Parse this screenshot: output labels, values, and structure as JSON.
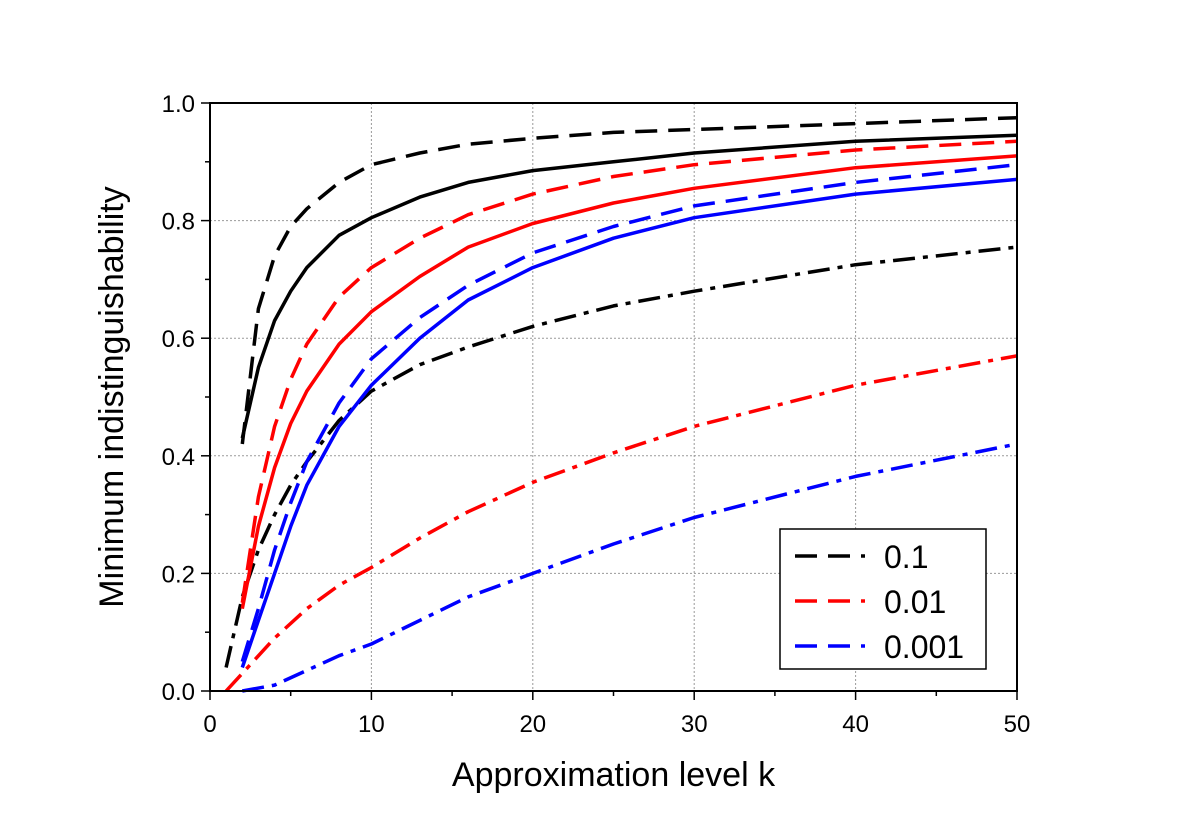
{
  "chart_data": {
    "type": "line",
    "title": "",
    "xlabel": "Approximation level k",
    "ylabel": "Minimum indistinguishability",
    "xlim": [
      0,
      50
    ],
    "ylim": [
      0.0,
      1.0
    ],
    "x_ticks": [
      "0",
      "10",
      "20",
      "30",
      "40",
      "50"
    ],
    "y_ticks": [
      "0.0",
      "0.2",
      "0.4",
      "0.6",
      "0.8",
      "1.0"
    ],
    "grid": true,
    "legend_position": "bottom-right",
    "legend": [
      {
        "label": "0.1",
        "color": "#000000",
        "style": "dashed"
      },
      {
        "label": "0.01",
        "color": "#ff0000",
        "style": "dashed"
      },
      {
        "label": "0.001",
        "color": "#0000ff",
        "style": "dashed"
      }
    ],
    "series": [
      {
        "name": "0.1 dashed",
        "color": "#000000",
        "style": "dashed",
        "x": [
          2,
          3,
          4,
          5,
          6,
          8,
          10,
          13,
          16,
          20,
          25,
          30,
          40,
          50
        ],
        "y": [
          0.42,
          0.65,
          0.74,
          0.79,
          0.82,
          0.865,
          0.895,
          0.915,
          0.93,
          0.94,
          0.95,
          0.955,
          0.965,
          0.975
        ]
      },
      {
        "name": "0.1 solid",
        "color": "#000000",
        "style": "solid",
        "x": [
          2,
          3,
          4,
          5,
          6,
          8,
          10,
          13,
          16,
          20,
          25,
          30,
          40,
          50
        ],
        "y": [
          0.43,
          0.55,
          0.63,
          0.68,
          0.72,
          0.775,
          0.805,
          0.84,
          0.865,
          0.885,
          0.9,
          0.915,
          0.935,
          0.945
        ]
      },
      {
        "name": "0.1 dashdot",
        "color": "#000000",
        "style": "dashdot",
        "x": [
          1,
          2,
          3,
          4,
          5,
          6,
          8,
          10,
          13,
          16,
          20,
          25,
          30,
          40,
          50
        ],
        "y": [
          0.04,
          0.16,
          0.24,
          0.3,
          0.35,
          0.39,
          0.46,
          0.51,
          0.555,
          0.585,
          0.62,
          0.655,
          0.68,
          0.725,
          0.755
        ]
      },
      {
        "name": "0.01 dashed",
        "color": "#ff0000",
        "style": "dashed",
        "x": [
          2,
          3,
          4,
          5,
          6,
          8,
          10,
          13,
          16,
          20,
          25,
          30,
          40,
          50
        ],
        "y": [
          0.15,
          0.33,
          0.45,
          0.53,
          0.59,
          0.67,
          0.72,
          0.77,
          0.81,
          0.845,
          0.875,
          0.895,
          0.92,
          0.935
        ]
      },
      {
        "name": "0.01 solid",
        "color": "#ff0000",
        "style": "solid",
        "x": [
          2,
          3,
          4,
          5,
          6,
          8,
          10,
          13,
          16,
          20,
          25,
          30,
          40,
          50
        ],
        "y": [
          0.14,
          0.28,
          0.38,
          0.455,
          0.51,
          0.59,
          0.645,
          0.705,
          0.755,
          0.795,
          0.83,
          0.855,
          0.89,
          0.91
        ]
      },
      {
        "name": "0.01 dashdot",
        "color": "#ff0000",
        "style": "dashdot",
        "x": [
          1,
          2,
          4,
          6,
          8,
          10,
          13,
          16,
          20,
          25,
          30,
          40,
          50
        ],
        "y": [
          0.0,
          0.03,
          0.09,
          0.14,
          0.18,
          0.21,
          0.26,
          0.305,
          0.355,
          0.405,
          0.45,
          0.52,
          0.57
        ]
      },
      {
        "name": "0.001 dashed",
        "color": "#0000ff",
        "style": "dashed",
        "x": [
          2,
          3,
          4,
          5,
          6,
          8,
          10,
          13,
          16,
          20,
          25,
          30,
          40,
          50
        ],
        "y": [
          0.05,
          0.14,
          0.24,
          0.32,
          0.39,
          0.49,
          0.565,
          0.635,
          0.69,
          0.745,
          0.79,
          0.825,
          0.865,
          0.895
        ]
      },
      {
        "name": "0.001 solid",
        "color": "#0000ff",
        "style": "solid",
        "x": [
          2,
          3,
          4,
          5,
          6,
          8,
          10,
          13,
          16,
          20,
          25,
          30,
          40,
          50
        ],
        "y": [
          0.04,
          0.12,
          0.2,
          0.28,
          0.35,
          0.45,
          0.52,
          0.6,
          0.665,
          0.72,
          0.77,
          0.805,
          0.845,
          0.87
        ]
      },
      {
        "name": "0.001 dashdot",
        "color": "#0000ff",
        "style": "dashdot",
        "x": [
          2,
          4,
          6,
          8,
          10,
          13,
          16,
          20,
          25,
          30,
          40,
          50
        ],
        "y": [
          0.0,
          0.01,
          0.035,
          0.06,
          0.08,
          0.12,
          0.16,
          0.2,
          0.25,
          0.295,
          0.365,
          0.42
        ]
      }
    ]
  }
}
